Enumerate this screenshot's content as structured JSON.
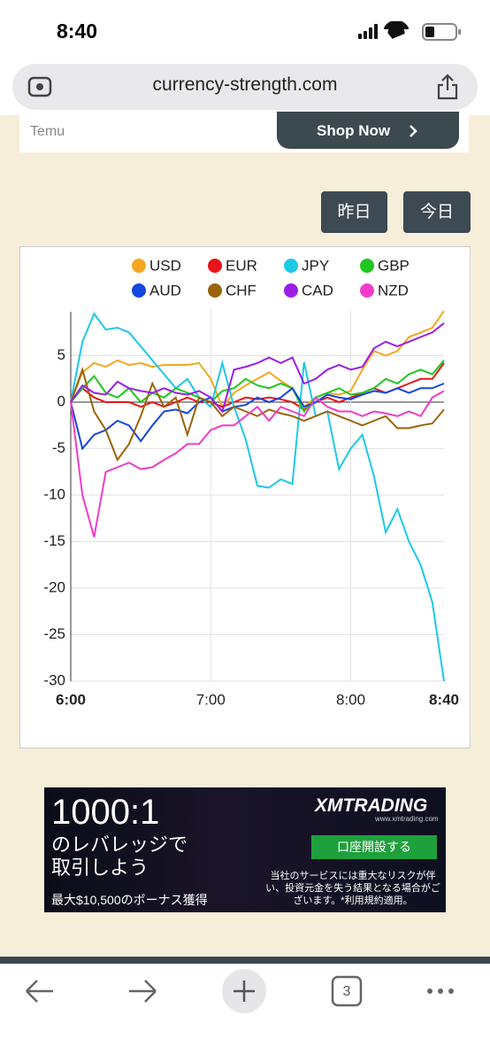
{
  "status": {
    "time": "8:40"
  },
  "browser": {
    "url": "currency-strength.com",
    "tab_count": "3"
  },
  "ad_top": {
    "brand": "Temu",
    "button": "Shop Now"
  },
  "buttons": [
    "昨日",
    "今日"
  ],
  "chart_data": {
    "type": "line",
    "x": [
      0,
      5,
      10,
      15,
      20,
      25,
      30,
      35,
      40,
      45,
      50,
      55,
      60,
      65,
      70,
      75,
      80,
      85,
      90,
      95,
      100,
      105,
      110,
      115,
      120,
      125,
      130,
      135,
      140,
      145,
      150,
      155,
      160
    ],
    "xlim": [
      0,
      160
    ],
    "xticks": [
      {
        "value": 0,
        "label": "6:00"
      },
      {
        "value": 60,
        "label": "7:00"
      },
      {
        "value": 120,
        "label": "8:00"
      },
      {
        "value": 160,
        "label": "8:40"
      }
    ],
    "ylim": [
      -30,
      10
    ],
    "yticks": [
      -30,
      -25,
      -20,
      -15,
      -10,
      -5,
      0,
      5
    ],
    "grid": true,
    "series": [
      {
        "name": "USD",
        "color": "#f5a623",
        "values": [
          0,
          3.2,
          4.2,
          3.8,
          4.5,
          4,
          4.2,
          3.8,
          4,
          4,
          4,
          4.2,
          2.5,
          -0.5,
          1,
          1.8,
          2.5,
          3.2,
          2.3,
          1.5,
          -0.5,
          0.5,
          1,
          0.8,
          1.2,
          3.5,
          5.5,
          5,
          5.5,
          7,
          7.5,
          8,
          9.8
        ]
      },
      {
        "name": "EUR",
        "color": "#e8141a",
        "values": [
          0,
          1.5,
          0.5,
          0,
          0,
          0,
          -0.5,
          0,
          -0.5,
          0,
          0.5,
          0,
          0,
          -0.5,
          0,
          0.5,
          0.3,
          0.5,
          0.3,
          0,
          -0.8,
          0,
          0.5,
          0,
          0.5,
          1,
          1.5,
          1,
          1.5,
          2,
          2.5,
          2.5,
          4.2
        ]
      },
      {
        "name": "JPY",
        "color": "#1ec8e8",
        "values": [
          0,
          6.5,
          9.5,
          7.8,
          8,
          7.5,
          6,
          4.5,
          3,
          1.5,
          2.5,
          0.5,
          -0.5,
          4.2,
          -0.5,
          -4,
          -9,
          -9.2,
          -8.3,
          -8.8,
          4.3,
          -1.5,
          -1,
          -7.2,
          -5,
          -3.5,
          -8,
          -14,
          -11.5,
          -15,
          -17.5,
          -21.5,
          -30
        ]
      },
      {
        "name": "GBP",
        "color": "#1ec81e",
        "values": [
          0,
          1.5,
          2.8,
          1,
          0.5,
          1.5,
          0,
          1,
          0.5,
          1.5,
          1,
          0.5,
          0,
          1.2,
          1.5,
          2.5,
          1.8,
          1.5,
          2,
          1.5,
          -1,
          0.5,
          1,
          1.5,
          0.8,
          1,
          1.5,
          2.5,
          2,
          3,
          3.5,
          3,
          4.5
        ]
      },
      {
        "name": "AUD",
        "color": "#1446e0",
        "values": [
          0,
          -5,
          -3.5,
          -3,
          -2,
          -2.5,
          -4.2,
          -2.5,
          -1,
          -0.8,
          -1.2,
          0,
          0.5,
          -1,
          -0.5,
          -0.3,
          0.5,
          0,
          0.5,
          1.5,
          -0.5,
          0,
          0.8,
          0.5,
          0.3,
          0.8,
          1.2,
          1,
          1.5,
          1,
          1.5,
          1.5,
          2
        ]
      },
      {
        "name": "CHF",
        "color": "#9a6408",
        "values": [
          0,
          3.5,
          -1,
          -3,
          -6.2,
          -4.5,
          -1.5,
          2,
          -0.5,
          0.5,
          -3.5,
          0.5,
          0,
          -1.5,
          -0.5,
          -1,
          -1.5,
          -0.8,
          -1.2,
          -1.5,
          -2,
          -1.5,
          -1,
          -1.5,
          -2,
          -2.5,
          -2,
          -1.5,
          -2.8,
          -2.8,
          -2.5,
          -2.3,
          -0.8
        ]
      },
      {
        "name": "CAD",
        "color": "#9b1ee8",
        "values": [
          0,
          1.8,
          1,
          0.8,
          2.2,
          1.5,
          1.2,
          1,
          1.5,
          1,
          0.8,
          1.2,
          0.5,
          -1,
          3.5,
          3.8,
          4.2,
          4.8,
          4.2,
          4.8,
          2,
          2.5,
          3.5,
          4,
          3.5,
          3.8,
          5.8,
          6.5,
          6,
          6.5,
          7,
          7.5,
          8.5
        ]
      },
      {
        "name": "NZD",
        "color": "#f03cc8",
        "values": [
          0,
          -10,
          -14.5,
          -7.5,
          -7,
          -6.5,
          -7.2,
          -7,
          -6.2,
          -5.5,
          -4.5,
          -4.5,
          -3,
          -2.5,
          -2.5,
          -1.5,
          -0.5,
          -2,
          -0.5,
          -1,
          -1.5,
          0.5,
          -0.5,
          -1,
          -1,
          -1.5,
          -1,
          -1.2,
          -1.5,
          -1,
          -1.5,
          0.5,
          1.2
        ]
      }
    ]
  },
  "ad_bottom": {
    "headline": "1000:1",
    "line1": "のレバレッジで",
    "line2": "取引しよう",
    "bonus": "最大$10,500のボーナス獲得",
    "brand": "XMTRADING",
    "site": "www.xmtrading.com",
    "button": "口座開設する",
    "disclaimer": "当社のサービスには重大なリスクが伴い、投資元金を失う結果となる場合がございます。*利用規約適用。"
  }
}
